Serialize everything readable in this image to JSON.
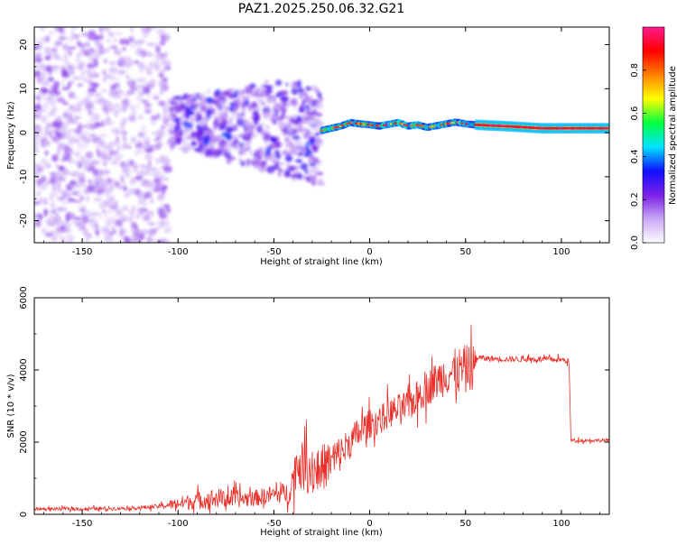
{
  "title": "PAZ1.2025.250.06.32.G21",
  "colors": {
    "snr_line": "#e8302a",
    "axis": "#000000",
    "ridge": "#ff1a2e"
  },
  "chart_data": [
    {
      "type": "heatmap",
      "name": "spectrogram",
      "xlabel": "Height of straight line (km)",
      "ylabel": "Frequency (Hz)",
      "xlim": [
        -175,
        125
      ],
      "ylim": [
        -25,
        24
      ],
      "xticks": [
        -150,
        -100,
        -50,
        0,
        50,
        100
      ],
      "xtick_labels": [
        "-150",
        "-100",
        "-50",
        "0",
        "50",
        "100"
      ],
      "yticks": [
        -20,
        -10,
        0,
        10,
        20
      ],
      "ytick_labels": [
        "-20",
        "-10",
        "0",
        "10",
        "20"
      ],
      "colorbar": {
        "label": "Normalized spectral amplitude",
        "range": [
          0,
          1
        ],
        "ticks": [
          0.0,
          0.2,
          0.4,
          0.6,
          0.8
        ],
        "tick_labels": [
          "0.0",
          "0.2",
          "0.4",
          "0.6",
          "0.8"
        ],
        "colors": [
          "#ffffff",
          "#c8a6f5",
          "#7a1fe6",
          "#1010ff",
          "#00e5ff",
          "#00ff40",
          "#ffff00",
          "#ff8000",
          "#ff0000",
          "#ff1a8c"
        ]
      },
      "regions": [
        {
          "x": [
            -175,
            -105
          ],
          "f": [
            -25,
            24
          ],
          "amplitude": 0.1,
          "texture": "diffuse noise"
        },
        {
          "x": [
            -105,
            -25
          ],
          "f": [
            -12,
            15
          ],
          "amplitude": 0.25,
          "texture": "clustered"
        },
        {
          "x": [
            -25,
            55
          ],
          "f": [
            0,
            3
          ],
          "amplitude": 0.5,
          "texture": "wavy ridge"
        },
        {
          "x": [
            55,
            125
          ],
          "f": [
            0.5,
            1.5
          ],
          "amplitude": 0.95,
          "texture": "stable ridge"
        }
      ],
      "ridge": {
        "x": [
          -25,
          -15,
          -10,
          -5,
          0,
          5,
          10,
          15,
          20,
          25,
          30,
          35,
          40,
          45,
          50,
          55,
          70,
          90,
          125
        ],
        "f": [
          0.5,
          1.5,
          2.3,
          2.0,
          1.8,
          1.5,
          1.9,
          2.3,
          1.5,
          1.8,
          1.2,
          1.6,
          2.0,
          2.4,
          2.0,
          1.8,
          1.5,
          1.0,
          1.0
        ]
      }
    },
    {
      "type": "line",
      "name": "snr",
      "xlabel": "Height of straight line (km)",
      "ylabel": "SNR (10 * v/v)",
      "xlim": [
        -175,
        125
      ],
      "ylim": [
        0,
        6000
      ],
      "xticks": [
        -150,
        -100,
        -50,
        0,
        50,
        100
      ],
      "xtick_labels": [
        "-150",
        "-100",
        "-50",
        "0",
        "50",
        "100"
      ],
      "yticks": [
        0,
        2000,
        4000,
        6000
      ],
      "ytick_labels": [
        "0",
        "2000",
        "4000",
        "6000"
      ],
      "series": [
        {
          "name": "SNR",
          "x": [
            -175,
            -150,
            -125,
            -110,
            -100,
            -90,
            -80,
            -70,
            -60,
            -50,
            -42,
            -38,
            -30,
            -25,
            -20,
            -15,
            -10,
            -5,
            0,
            5,
            10,
            20,
            30,
            40,
            50,
            55,
            56,
            60,
            70,
            80,
            90,
            100,
            104,
            105,
            110,
            125
          ],
          "y": [
            150,
            150,
            170,
            220,
            300,
            380,
            450,
            420,
            450,
            550,
            600,
            1400,
            1200,
            1300,
            1450,
            1700,
            2000,
            2300,
            2500,
            2600,
            2800,
            3000,
            3500,
            3900,
            4000,
            4100,
            4350,
            4320,
            4300,
            4300,
            4300,
            4280,
            4250,
            2050,
            2050,
            2050
          ],
          "noise": [
            40,
            50,
            50,
            60,
            180,
            250,
            280,
            250,
            230,
            260,
            300,
            650,
            700,
            650,
            650,
            500,
            450,
            450,
            400,
            400,
            420,
            450,
            480,
            600,
            700,
            600,
            90,
            80,
            80,
            80,
            80,
            80,
            80,
            50,
            50,
            50
          ]
        }
      ]
    }
  ]
}
